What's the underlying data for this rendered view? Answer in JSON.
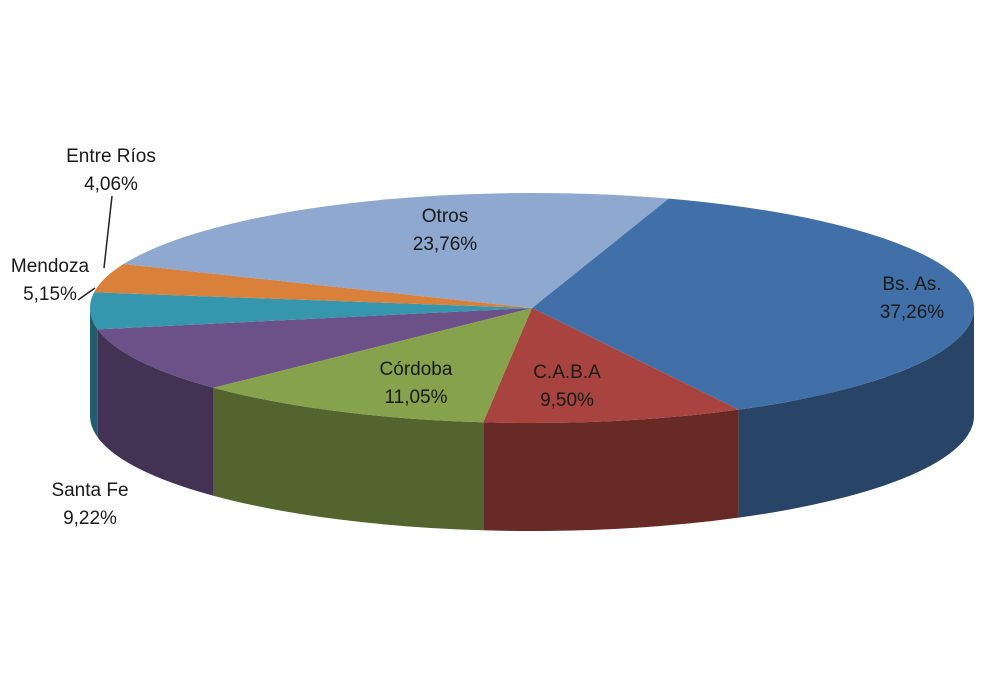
{
  "chart_data": {
    "type": "pie",
    "style": "3d-exploded-none",
    "slices": [
      {
        "name": "Bs. As.",
        "value": 37.26,
        "label_pct": "37,26%",
        "color": "#4170A8"
      },
      {
        "name": "C.A.B.A",
        "value": 9.5,
        "label_pct": "9,50%",
        "color": "#A8433F"
      },
      {
        "name": "Córdoba",
        "value": 11.05,
        "label_pct": "11,05%",
        "color": "#86A24C"
      },
      {
        "name": "Santa Fe",
        "value": 9.22,
        "label_pct": "9,22%",
        "color": "#6C5088"
      },
      {
        "name": "Mendoza",
        "value": 5.15,
        "label_pct": "5,15%",
        "color": "#3696AE"
      },
      {
        "name": "Entre Ríos",
        "value": 4.06,
        "label_pct": "4,06%",
        "color": "#D9803A"
      },
      {
        "name": "Otros",
        "value": 23.76,
        "label_pct": "23,76%",
        "color": "#8EA8CF"
      }
    ],
    "legend": "none",
    "data_labels": "name and percent"
  }
}
